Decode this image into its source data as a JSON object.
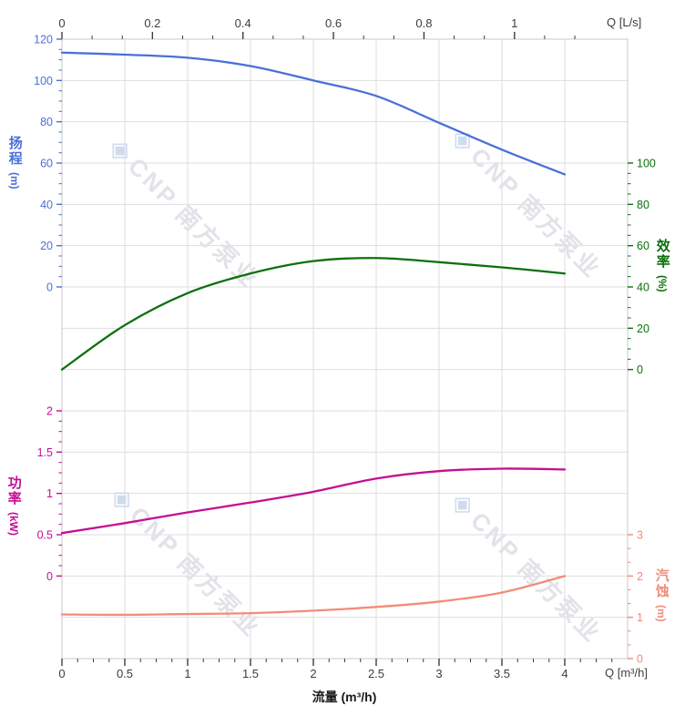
{
  "chart_data": {
    "type": "line",
    "title": "",
    "grid": true,
    "legend": "none",
    "watermark": {
      "brand": "CNP",
      "text": "南方泵业",
      "logo": "◈"
    },
    "axes": {
      "top": {
        "label": "Q [L/s]",
        "ticks": [
          0,
          0.2,
          0.4,
          0.6,
          0.8,
          1
        ],
        "range": [
          0,
          1.25
        ],
        "color": "#3d3d3d"
      },
      "bottom": {
        "label": "Q [m³/h]",
        "title": "流量 (m³/h)",
        "ticks": [
          0,
          0.5,
          1,
          1.5,
          2,
          2.5,
          3,
          3.5,
          4
        ],
        "range": [
          0,
          4.5
        ],
        "color": "#3d3d3d"
      },
      "head": {
        "title": "扬程",
        "unit": "(m)",
        "color": "#4a70d9",
        "min": 0,
        "max": 120,
        "tick_step": 20,
        "minor_step": 5
      },
      "efficiency": {
        "title": "效率",
        "unit": "(%)",
        "color": "#0c700c",
        "min": 0,
        "max": 100,
        "tick_step": 20,
        "minor_step": 5
      },
      "power": {
        "title": "功率",
        "unit": "(kW)",
        "color": "#c70d93",
        "min": 0,
        "max": 2,
        "tick_step": 0.5,
        "minor_step": 0.125
      },
      "npsh": {
        "title": "汽蚀",
        "unit": "(m)",
        "color": "#f28c78",
        "min": 0,
        "max": 3,
        "tick_step": 1,
        "minor_step": 0.3333
      }
    },
    "x_flow_m3h": [
      0,
      0.5,
      1,
      1.5,
      2,
      2.5,
      3,
      3.5,
      4
    ],
    "series": [
      {
        "name": "扬程",
        "axis": "head",
        "color": "#4a70d9",
        "x": [
          0,
          0.5,
          1,
          1.5,
          2,
          2.5,
          3,
          3.5,
          4
        ],
        "y": [
          113.5,
          112.5,
          111,
          107,
          100,
          92.5,
          79.5,
          66.5,
          54.5
        ]
      },
      {
        "name": "效率",
        "axis": "efficiency",
        "color": "#0c700c",
        "x": [
          0,
          0.5,
          1,
          1.5,
          2,
          2.5,
          3,
          3.5,
          4
        ],
        "y": [
          0,
          21.5,
          37,
          46.5,
          52.5,
          54,
          52,
          49.5,
          46.5
        ]
      },
      {
        "name": "功率",
        "axis": "power",
        "color": "#c70d93",
        "x": [
          0,
          0.5,
          1,
          1.5,
          2,
          2.5,
          3,
          3.5,
          4
        ],
        "y": [
          0.52,
          0.64,
          0.77,
          0.89,
          1.02,
          1.18,
          1.27,
          1.3,
          1.29
        ]
      },
      {
        "name": "汽蚀",
        "axis": "npsh",
        "color": "#f28c78",
        "x": [
          0,
          0.5,
          1,
          1.5,
          2,
          2.5,
          3,
          3.5,
          4
        ],
        "y": [
          1.07,
          1.06,
          1.08,
          1.1,
          1.16,
          1.25,
          1.38,
          1.6,
          2.0
        ]
      }
    ]
  }
}
